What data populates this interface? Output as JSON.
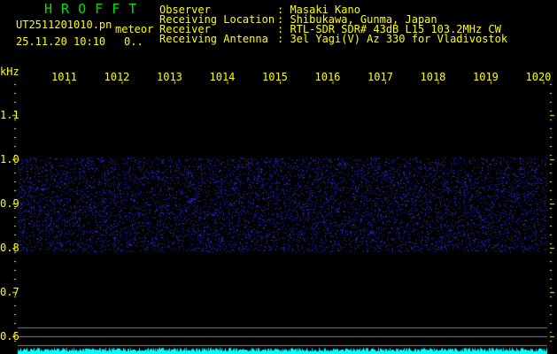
{
  "app_title": "H R O F F T",
  "file_name": "UT2511201010.pn",
  "mode": "meteor",
  "datetime": "25.11.20 10:10",
  "count": "0..",
  "info": {
    "labels": [
      "Observer",
      "Receiving Location",
      "Receiver",
      "Receiving Antenna"
    ],
    "values": [
      ": Masaki Kano",
      ": Shibukawa, Gunma, Japan",
      ": RTL-SDR SDR# 43dB L15 103.2MHz CW",
      ": 3el Yagi(V) Az 330 for Vladivostok"
    ]
  },
  "y_unit": "kHz",
  "x_ticks": [
    "1011",
    "1012",
    "1013",
    "1014",
    "1015",
    "1016",
    "1017",
    "1018",
    "1019",
    "1020"
  ],
  "y_ticks": [
    "1.1",
    "1.0",
    "0.9",
    "0.8",
    "0.7",
    "0.6"
  ],
  "colors": {
    "text": "#ffff00",
    "title": "#00e000",
    "noise": "#2020ff",
    "level": "#00ffff",
    "lines": "#808080"
  }
}
